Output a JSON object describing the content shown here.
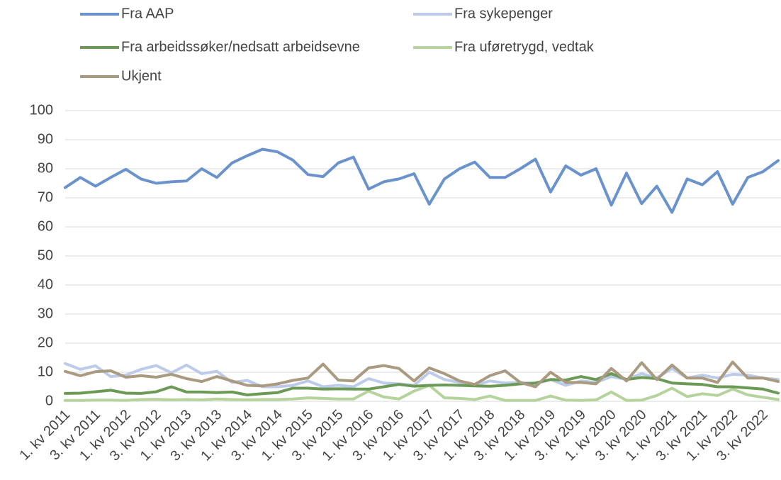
{
  "chart_data": {
    "type": "line",
    "categories": [
      "1. kv 2011",
      null,
      "3. kv 2011",
      null,
      "1. kv 2012",
      null,
      "3. kv 2012",
      null,
      "1. kv 2013",
      null,
      "3. kv 2013",
      null,
      "1. kv 2014",
      null,
      "3. kv 2014",
      null,
      "1. kv 2015",
      null,
      "3. kv 2015",
      null,
      "1. kv 2016",
      null,
      "3. kv 2016",
      null,
      "1. kv 2017",
      null,
      "3. kv 2017",
      null,
      "1. kv 2018",
      null,
      "3. kv 2018",
      null,
      "1. kv 2019",
      null,
      "3. kv 2019",
      null,
      "1. kv 2020",
      null,
      "3. kv 2020",
      null,
      "1. kv 2021",
      null,
      "3. kv 2021",
      null,
      "1. kv 2022",
      null,
      "3. kv 2022",
      null
    ],
    "series": [
      {
        "name": "Fra AAP",
        "color": "#6a93cd",
        "values": [
          73.5,
          77,
          74,
          77,
          79.8,
          76.5,
          75,
          75.5,
          75.8,
          80,
          77,
          82,
          84.5,
          86.7,
          85.8,
          83,
          78,
          77.3,
          82,
          84,
          73,
          75.5,
          76.5,
          78.3,
          67.8,
          76.5,
          80,
          82.3,
          77,
          77,
          80,
          83.3,
          72,
          81,
          77.8,
          80,
          67.5,
          78.5,
          68,
          74,
          65,
          76.5,
          74.5,
          79,
          67.8,
          77,
          79,
          82.8
        ]
      },
      {
        "name": "Fra sykepenger",
        "color": "#bccbe9",
        "values": [
          13,
          11,
          12.2,
          8.5,
          9,
          11,
          12.3,
          9.8,
          12.5,
          9.5,
          10.3,
          6.5,
          7.2,
          5,
          5,
          5.5,
          7,
          5,
          5.5,
          5,
          7.8,
          6.3,
          6,
          5.5,
          10,
          7.5,
          6.5,
          5.5,
          7,
          6.3,
          6.5,
          6,
          7.5,
          5.5,
          7,
          6.5,
          8.5,
          7.5,
          9.5,
          8,
          11.3,
          8,
          9,
          8,
          9.3,
          9,
          8,
          7.5
        ]
      },
      {
        "name": "Fra arbeidssøker/nedsatt arbeidsevne",
        "color": "#6a9a55",
        "values": [
          2.7,
          2.8,
          3.3,
          3.8,
          2.8,
          2.7,
          3.3,
          5,
          3.2,
          3.2,
          3,
          3.2,
          2.2,
          2.6,
          3,
          4.5,
          4.5,
          4.2,
          4.3,
          4.2,
          4.2,
          5,
          5.8,
          5.2,
          5.5,
          5.6,
          5.5,
          5.3,
          5.2,
          5.5,
          6,
          6.3,
          7.5,
          7.3,
          8.5,
          7.5,
          9.5,
          7.5,
          8.2,
          7.8,
          6.3,
          6,
          5.8,
          5,
          5,
          4.6,
          4.2,
          2.8
        ]
      },
      {
        "name": "Fra uføretrygd, vedtak",
        "color": "#b5d49b",
        "values": [
          0.3,
          0.3,
          0.4,
          0.4,
          0.3,
          0.6,
          0.7,
          0.5,
          0.6,
          0.5,
          0.8,
          0.6,
          0.5,
          0.6,
          0.6,
          0.8,
          1.2,
          1,
          0.8,
          0.8,
          3.5,
          1.5,
          0.8,
          3.5,
          5.5,
          1.2,
          1,
          0.6,
          1.8,
          0.3,
          0.3,
          0.3,
          1.8,
          0.4,
          0.3,
          0.5,
          3.2,
          0.3,
          0.4,
          2,
          4.5,
          1.6,
          2.6,
          2,
          4.2,
          2.2,
          1.4,
          0.6
        ]
      },
      {
        "name": "Ukjent",
        "color": "#a99a80",
        "values": [
          10.3,
          8.8,
          10.2,
          10.5,
          8.3,
          8.8,
          8.3,
          9.3,
          7.8,
          6.8,
          8.5,
          7,
          5.5,
          5.3,
          6,
          7.2,
          8,
          12.8,
          7.3,
          7,
          11.5,
          12.3,
          11.3,
          7,
          11.5,
          9.5,
          7,
          5.8,
          8.8,
          10.5,
          6.5,
          5,
          10,
          6.5,
          6.5,
          6,
          11.3,
          7,
          13.3,
          7.5,
          12.5,
          8,
          8,
          6.5,
          13.5,
          8,
          8,
          6.8
        ]
      }
    ],
    "ylim": [
      0,
      100
    ],
    "yticks": [
      0,
      10,
      20,
      30,
      40,
      50,
      60,
      70,
      80,
      90,
      100
    ],
    "grid": true,
    "legend": "top"
  }
}
